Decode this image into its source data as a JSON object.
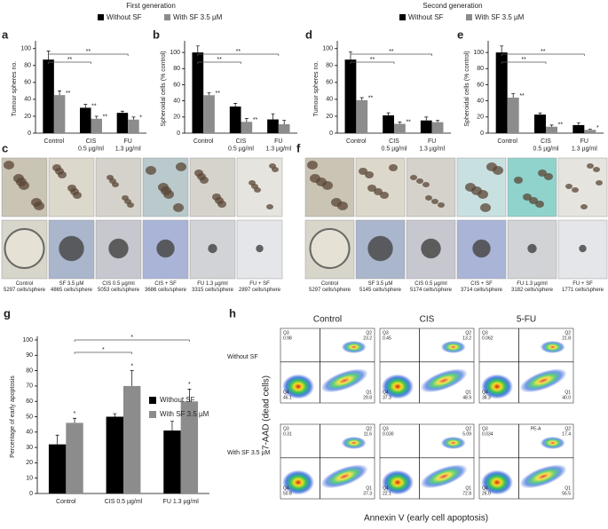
{
  "figure": {
    "header_left": "First generation",
    "header_right": "Second generation"
  },
  "chart_data": [
    {
      "type": "bar",
      "panel": "a",
      "y_label": "Tumour spheres no.",
      "categories": [
        "Control",
        "CIS\n0.5 µg/ml",
        "FU\n1.3 µg/ml"
      ],
      "series": [
        {
          "name": "Without SF",
          "color": "#000000",
          "values": [
            87,
            30,
            24
          ],
          "errors": [
            10,
            4,
            2
          ],
          "stars": [
            null,
            "**",
            null
          ]
        },
        {
          "name": "With SF 3.5 µM",
          "color": "#8c8c8c",
          "values": [
            45,
            17,
            16
          ],
          "errors": [
            5,
            3,
            3
          ],
          "stars": [
            "**",
            "**",
            "*"
          ]
        }
      ],
      "brackets": [
        {
          "from": "Control",
          "to": "CIS\n0.5 µg/ml",
          "label": "**"
        },
        {
          "from": "Control",
          "to": "FU\n1.3 µg/ml",
          "label": "**"
        }
      ],
      "ylim": [
        0,
        105
      ],
      "yticks": [
        0,
        20,
        40,
        60,
        80,
        100
      ]
    },
    {
      "type": "bar",
      "panel": "b",
      "y_label": "Spheroidal cells (% control)",
      "categories": [
        "Control",
        "CIS\n0.5 µg/ml",
        "FU\n1.3 µg/ml"
      ],
      "series": [
        {
          "name": "Without SF",
          "color": "#000000",
          "values": [
            100,
            33,
            17
          ],
          "errors": [
            8,
            4,
            7
          ],
          "stars": [
            null,
            null,
            null
          ]
        },
        {
          "name": "With SF 3.5 µM",
          "color": "#8c8c8c",
          "values": [
            47,
            14,
            11
          ],
          "errors": [
            3,
            4,
            5
          ],
          "stars": [
            "**",
            "**",
            null
          ]
        }
      ],
      "brackets": [
        {
          "from": "Control",
          "to": "CIS\n0.5 µg/ml",
          "label": "**"
        },
        {
          "from": "Control",
          "to": "FU\n1.3 µg/ml",
          "label": "**"
        }
      ],
      "ylim": [
        0,
        110
      ],
      "yticks": [
        0,
        20,
        40,
        60,
        80,
        100
      ]
    },
    {
      "type": "bar",
      "panel": "d",
      "y_label": "Tumour spheres no.",
      "categories": [
        "Control",
        "CIS\n0.5 µg/ml",
        "FU\n1.3 µg/ml"
      ],
      "series": [
        {
          "name": "Without SF",
          "color": "#000000",
          "values": [
            87,
            21,
            15
          ],
          "errors": [
            9,
            3,
            4
          ],
          "stars": [
            null,
            null,
            null
          ]
        },
        {
          "name": "With SF 3.5 µM",
          "color": "#8c8c8c",
          "values": [
            39,
            11,
            13
          ],
          "errors": [
            3,
            2,
            2
          ],
          "stars": [
            "**",
            "**",
            null
          ]
        }
      ],
      "brackets": [
        {
          "from": "Control",
          "to": "CIS\n0.5 µg/ml",
          "label": "**"
        },
        {
          "from": "Control",
          "to": "FU\n1.3 µg/ml",
          "label": "**"
        }
      ],
      "ylim": [
        0,
        105
      ],
      "yticks": [
        0,
        20,
        40,
        60,
        80,
        100
      ]
    },
    {
      "type": "bar",
      "panel": "e",
      "y_label": "Spheroidal cells (% control)",
      "categories": [
        "Control",
        "CIS\n0.5 µg/ml",
        "FU\n1.3 µg/ml"
      ],
      "series": [
        {
          "name": "Without SF",
          "color": "#000000",
          "values": [
            100,
            23,
            10
          ],
          "errors": [
            8,
            2,
            3
          ],
          "stars": [
            null,
            null,
            null
          ]
        },
        {
          "name": "With SF 3.5 µM",
          "color": "#8c8c8c",
          "values": [
            44,
            8,
            4
          ],
          "errors": [
            5,
            2,
            1
          ],
          "stars": [
            "**",
            "**",
            "*"
          ]
        }
      ],
      "brackets": [
        {
          "from": "Control",
          "to": "CIS\n0.5 µg/ml",
          "label": "**"
        },
        {
          "from": "Control",
          "to": "FU\n1.3 µg/ml",
          "label": "**"
        }
      ],
      "ylim": [
        0,
        110
      ],
      "yticks": [
        0,
        20,
        40,
        60,
        80,
        100
      ]
    },
    {
      "type": "bar",
      "panel": "g",
      "y_label": "Percentage of early apoptosis",
      "categories": [
        "Control",
        "CIS 0.5 µg/ml",
        "FU 1.3 µg/ml"
      ],
      "series": [
        {
          "name": "Without SF",
          "color": "#000000",
          "values": [
            32,
            50,
            41
          ],
          "errors": [
            6,
            2,
            6
          ],
          "stars": [
            null,
            null,
            null
          ]
        },
        {
          "name": "With SF 3.5 µM",
          "color": "#8c8c8c",
          "values": [
            46,
            70,
            60
          ],
          "errors": [
            3,
            10,
            8
          ],
          "stars": [
            "*",
            "*",
            "*"
          ]
        }
      ],
      "brackets": [
        {
          "from": "Control",
          "to": "CIS 0.5 µg/ml",
          "label": "*"
        },
        {
          "from": "Control",
          "to": "FU 1.3 µg/ml",
          "label": "*"
        }
      ],
      "ylim": [
        0,
        100
      ],
      "yticks": [
        0,
        10,
        20,
        30,
        40,
        50,
        60,
        70,
        80,
        90,
        100
      ],
      "legend": "right"
    }
  ],
  "micrographs": [
    {
      "panel": "c",
      "captions": [
        "Control\n5297 cells/sphere",
        "SF 3.5 µM\n4865 cells/sphere",
        "CIS 0.5 µg/ml\n5053 cells/sphere",
        "CIS + SF\n3686 cells/sphere",
        "FU 1.3 µg/ml\n3315 cells/sphere",
        "FU + SF\n2897 cells/sphere"
      ]
    },
    {
      "panel": "f",
      "captions": [
        "Control\n5297 cells/sphere",
        "SF 3.5 µM\n5145 cells/sphere",
        "CIS 0.5 µg/ml\n5174 cells/sphere",
        "CIS + SF\n3714 cells/sphere",
        "FU 1.3 µg/ml\n3182 cells/sphere",
        "FU + SF\n1771 cells/sphere"
      ]
    }
  ],
  "flow": {
    "panel": "h",
    "columns": [
      "Control",
      "CIS",
      "5-FU"
    ],
    "rows": [
      "Without SF",
      "With SF 3.5 µM"
    ],
    "y_label": "7-AAD (dead cells)",
    "x_label": "Annexin V (early cell apoptosis)",
    "quadrants": [
      "Q3",
      "Q2",
      "Q4",
      "Q1"
    ],
    "plots": [
      [
        [
          "0.98",
          "23.2",
          "46.1",
          "29.8"
        ],
        [
          "0.45",
          "13.2",
          "37.3",
          "48.9"
        ],
        [
          "0.062",
          "21.8",
          "38.3",
          "40.0"
        ]
      ],
      [
        [
          "0.31",
          "11.6",
          "50.8",
          "37.3"
        ],
        [
          "0.030",
          "5.09",
          "22.1",
          "72.8"
        ],
        [
          "0.034",
          "17.4",
          "26.0",
          "56.5"
        ]
      ]
    ],
    "extra_label": "PE-A"
  }
}
